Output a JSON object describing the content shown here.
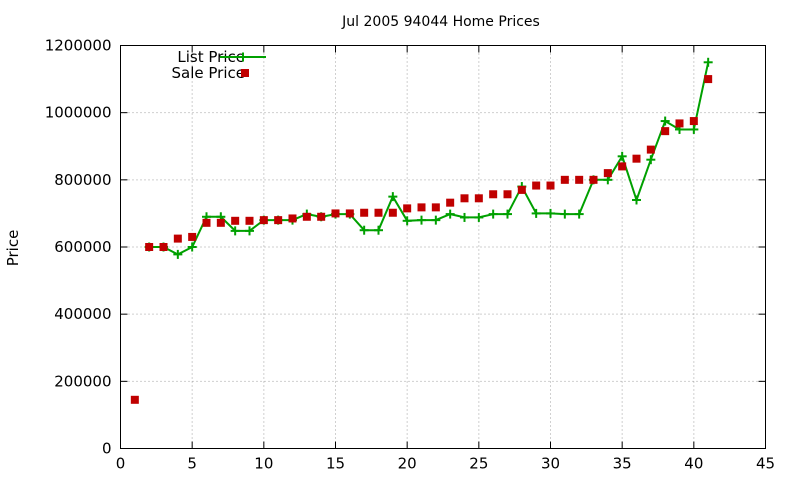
{
  "chart_data": {
    "type": "line",
    "title": "Jul 2005 94044 Home Prices",
    "xlabel": "",
    "ylabel": "Price",
    "xlim": [
      0,
      45
    ],
    "ylim": [
      0,
      1200000
    ],
    "xticks": [
      0,
      5,
      10,
      15,
      20,
      25,
      30,
      35,
      40,
      45
    ],
    "yticks": [
      0,
      200000,
      400000,
      600000,
      800000,
      1000000,
      1200000
    ],
    "grid": true,
    "legend_position": "top-left",
    "series": [
      {
        "name": "List Price",
        "style": "line-with-plus",
        "color": "#00a000",
        "points": [
          [
            2,
            600000
          ],
          [
            3,
            600000
          ],
          [
            4,
            578000
          ],
          [
            5,
            600000
          ],
          [
            6,
            690000
          ],
          [
            7,
            690000
          ],
          [
            8,
            648000
          ],
          [
            9,
            648000
          ],
          [
            10,
            680000
          ],
          [
            11,
            680000
          ],
          [
            12,
            680000
          ],
          [
            13,
            698000
          ],
          [
            14,
            690000
          ],
          [
            15,
            698000
          ],
          [
            16,
            698000
          ],
          [
            17,
            650000
          ],
          [
            18,
            650000
          ],
          [
            19,
            750000
          ],
          [
            20,
            678000
          ],
          [
            21,
            680000
          ],
          [
            22,
            680000
          ],
          [
            23,
            698000
          ],
          [
            24,
            688000
          ],
          [
            25,
            688000
          ],
          [
            26,
            698000
          ],
          [
            27,
            698000
          ],
          [
            28,
            780000
          ],
          [
            29,
            700000
          ],
          [
            30,
            700000
          ],
          [
            31,
            698000
          ],
          [
            32,
            698000
          ],
          [
            33,
            800000
          ],
          [
            34,
            800000
          ],
          [
            35,
            870000
          ],
          [
            36,
            740000
          ],
          [
            37,
            860000
          ],
          [
            38,
            975000
          ],
          [
            39,
            950000
          ],
          [
            40,
            950000
          ],
          [
            41,
            1150000
          ]
        ]
      },
      {
        "name": "Sale Price",
        "style": "square-markers",
        "color": "#c00000",
        "points": [
          [
            1,
            145000
          ],
          [
            2,
            600000
          ],
          [
            3,
            600000
          ],
          [
            4,
            625000
          ],
          [
            5,
            630000
          ],
          [
            6,
            672000
          ],
          [
            7,
            672000
          ],
          [
            8,
            678000
          ],
          [
            9,
            678000
          ],
          [
            10,
            680000
          ],
          [
            11,
            680000
          ],
          [
            12,
            685000
          ],
          [
            13,
            690000
          ],
          [
            14,
            690000
          ],
          [
            15,
            700000
          ],
          [
            16,
            700000
          ],
          [
            17,
            702000
          ],
          [
            18,
            702000
          ],
          [
            19,
            702000
          ],
          [
            20,
            715000
          ],
          [
            21,
            718000
          ],
          [
            22,
            718000
          ],
          [
            23,
            732000
          ],
          [
            24,
            745000
          ],
          [
            25,
            745000
          ],
          [
            26,
            757000
          ],
          [
            27,
            757000
          ],
          [
            28,
            770000
          ],
          [
            29,
            783000
          ],
          [
            30,
            783000
          ],
          [
            31,
            800000
          ],
          [
            32,
            800000
          ],
          [
            33,
            800000
          ],
          [
            34,
            820000
          ],
          [
            35,
            840000
          ],
          [
            36,
            863000
          ],
          [
            37,
            890000
          ],
          [
            38,
            945000
          ],
          [
            39,
            968000
          ],
          [
            40,
            975000
          ],
          [
            41,
            1100000
          ]
        ]
      }
    ]
  }
}
